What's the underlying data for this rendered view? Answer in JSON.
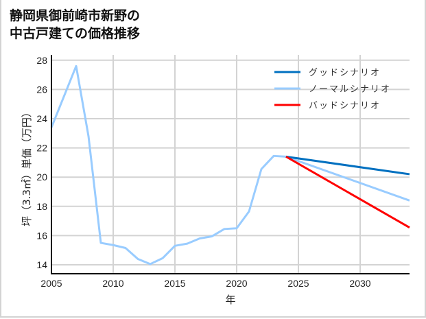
{
  "title_line1": "静岡県御前崎市新野の",
  "title_line2": "中古戸建ての価格推移",
  "chart_data": {
    "type": "line",
    "title": "静岡県御前崎市新野の中古戸建ての価格推移",
    "xlabel": "年",
    "ylabel": "坪（3.3㎡）単価（万円）",
    "xlim": [
      2005,
      2034
    ],
    "ylim": [
      13.4,
      28.2
    ],
    "x_ticks": [
      2005,
      2010,
      2015,
      2020,
      2025,
      2030
    ],
    "y_ticks": [
      14,
      16,
      18,
      20,
      22,
      24,
      26,
      28
    ],
    "grid": true,
    "legend_position": "upper right",
    "series": [
      {
        "name": "グッドシナリオ",
        "color": "#0070c0",
        "x": [
          2024,
          2034
        ],
        "values": [
          21.4,
          20.2
        ]
      },
      {
        "name": "ノーマルシナリオ",
        "color": "#99ccff",
        "x": [
          2005,
          2007,
          2008,
          2009,
          2010,
          2011,
          2012,
          2013,
          2014,
          2015,
          2016,
          2017,
          2018,
          2019,
          2020,
          2021,
          2022,
          2023,
          2024,
          2034
        ],
        "values": [
          23.4,
          27.6,
          22.8,
          15.5,
          15.35,
          15.15,
          14.4,
          14.05,
          14.45,
          15.3,
          15.45,
          15.8,
          15.95,
          16.45,
          16.5,
          17.65,
          20.55,
          21.45,
          21.4,
          18.4
        ]
      },
      {
        "name": "バッドシナリオ",
        "color": "#ff0000",
        "x": [
          2024,
          2034
        ],
        "values": [
          21.4,
          16.55
        ]
      }
    ]
  }
}
